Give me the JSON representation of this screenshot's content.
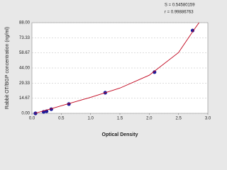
{
  "chart_data": {
    "type": "scatter",
    "x_label": "Optical Density",
    "y_label": "Rabbit OT/BGP concentration (ng/ml)",
    "annotations": [
      "S = 0.54580159",
      "r = 0.99886763"
    ],
    "xlim": [
      0,
      3
    ],
    "xticks": [
      {
        "value": 0,
        "label": "0.0"
      },
      0.5,
      {
        "value": 1,
        "label": "1.0"
      },
      1.5,
      {
        "value": 2,
        "label": "2.0"
      },
      2.5,
      {
        "value": 3,
        "label": "3.0"
      }
    ],
    "ylim": [
      0,
      88
    ],
    "yticks": [
      {
        "value": 0,
        "label": "0.00"
      },
      14.67,
      29.33,
      {
        "value": 44,
        "label": "44.00"
      },
      58.67,
      73.33,
      {
        "value": 88,
        "label": "88.00"
      }
    ],
    "grid": true,
    "series": [
      {
        "color": "#1c1c9c",
        "x": [
          0.06,
          0.2,
          0.25,
          0.33,
          0.63,
          1.25,
          2.09,
          2.74
        ],
        "values": [
          0,
          1.4,
          2,
          4,
          9,
          20,
          40,
          80.4
        ]
      },
      {
        "type": "line",
        "color": "#c0001a",
        "x": [
          0.05,
          0.3,
          0.6,
          1.0,
          1.5,
          2.0,
          2.5,
          2.75,
          2.85
        ],
        "values": [
          0,
          4,
          9,
          15.5,
          24.5,
          37,
          59,
          80,
          88
        ]
      }
    ]
  }
}
